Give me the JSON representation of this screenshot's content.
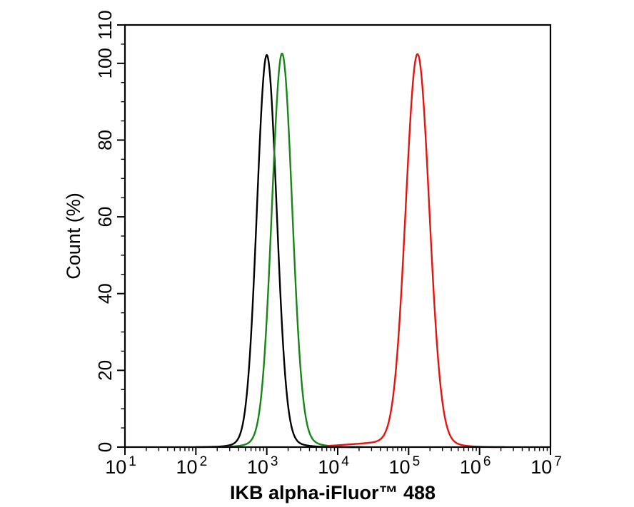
{
  "figure": {
    "background": "#ffffff",
    "frame_color": "#000000"
  },
  "chart_data": {
    "type": "line",
    "subtype": "flow-cytometry-overlay-histogram",
    "title": "",
    "xlabel": "IKB alpha-iFluor™ 488",
    "ylabel": "Count  (%)",
    "legend": "none",
    "grid": false,
    "x_axis": {
      "scale": "log10",
      "min_exp": 1,
      "max_exp": 7,
      "tick_label_base": "10",
      "major_tick_exponents": [
        1,
        2,
        3,
        4,
        5,
        6,
        7
      ],
      "minor_tick_multiples": [
        2,
        3,
        4,
        5,
        6,
        7,
        8,
        9
      ]
    },
    "y_axis": {
      "min": 0,
      "max": 110,
      "major_ticks": [
        0,
        20,
        40,
        60,
        80,
        100,
        110
      ],
      "minor_tick_step": 5
    },
    "series": [
      {
        "name": "black-curve",
        "color": "#000000",
        "peak": {
          "x": 1000,
          "x_log10": 3.0,
          "y": 100
        },
        "fwhm_decades": 0.33,
        "range_log10": [
          2.0,
          4.3
        ],
        "gaussian_components_log10": [
          {
            "amp": 100,
            "mu": 3.0,
            "sigma": 0.138
          },
          {
            "amp": 2.2,
            "mu": 3.02,
            "sigma": 0.3
          }
        ]
      },
      {
        "name": "green-curve",
        "color": "#168616",
        "peak": {
          "x": 1640,
          "x_log10": 3.215,
          "y": 100
        },
        "fwhm_decades": 0.34,
        "range_log10": [
          2.3,
          4.35
        ],
        "gaussian_components_log10": [
          {
            "amp": 100,
            "mu": 3.215,
            "sigma": 0.142
          },
          {
            "amp": 2.6,
            "mu": 3.24,
            "sigma": 0.31
          }
        ]
      },
      {
        "name": "red-curve",
        "color": "#e8120d",
        "peak": {
          "x": 133000,
          "x_log10": 5.125,
          "y": 100
        },
        "fwhm_decades": 0.4,
        "range_log10": [
          3.85,
          6.35
        ],
        "gaussian_components_log10": [
          {
            "amp": 100,
            "mu": 5.125,
            "sigma": 0.165
          },
          {
            "amp": 2.2,
            "mu": 5.15,
            "sigma": 0.34
          },
          {
            "amp": 0.85,
            "mu": 4.45,
            "sigma": 0.42
          }
        ]
      }
    ]
  }
}
